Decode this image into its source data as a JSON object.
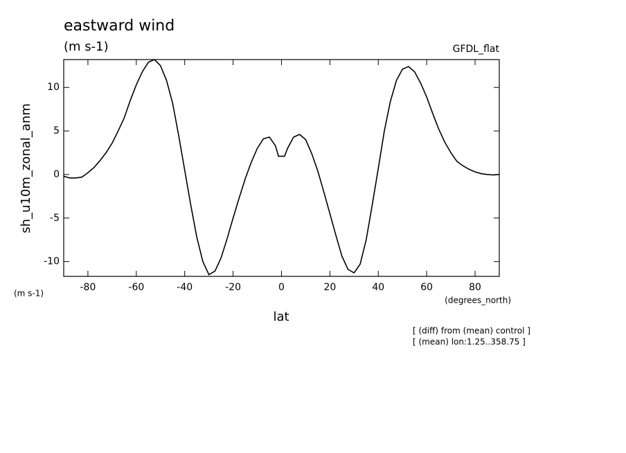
{
  "chart_data": {
    "type": "line",
    "title": "eastward wind",
    "subtitle": "(m s-1)",
    "source": "GFDL_flat",
    "y_label": "sh_u10m_zonal_anm",
    "y_units": "(m s-1)",
    "x_units": "(degrees_north)",
    "x_label": "lat",
    "notes": [
      "[ (diff) from (mean) control ]",
      "[ (mean) lon:1.25..358.75 ]"
    ],
    "xlim": [
      -90,
      90
    ],
    "ylim": [
      -11.7,
      13.2
    ],
    "xticks": [
      -80,
      -60,
      -40,
      -20,
      0,
      20,
      40,
      60,
      80
    ],
    "yticks": [
      -10,
      -5,
      0,
      5,
      10
    ],
    "x": [
      -90,
      -87.5,
      -85,
      -82.5,
      -80,
      -77.5,
      -75,
      -72.5,
      -70,
      -67.5,
      -65,
      -62.5,
      -60,
      -57.5,
      -55,
      -52.5,
      -50,
      -47.5,
      -45,
      -42.5,
      -40,
      -37.5,
      -35,
      -32.5,
      -30,
      -27.5,
      -25,
      -22.5,
      -20,
      -17.5,
      -15,
      -12.5,
      -10,
      -7.5,
      -5,
      -2.5,
      -1.25,
      1.25,
      2.5,
      5,
      7.5,
      10,
      12.5,
      15,
      17.5,
      20,
      22.5,
      25,
      27.5,
      30,
      32.5,
      35,
      37.5,
      40,
      42.5,
      45,
      47.5,
      50,
      52.5,
      55,
      57.5,
      60,
      62.5,
      65,
      67.5,
      70,
      72.5,
      75,
      77.5,
      80,
      82.5,
      85,
      87.5,
      90
    ],
    "series": [
      {
        "color": "#000000",
        "values": [
          -0.2,
          -0.4,
          -0.4,
          -0.3,
          0.2,
          0.8,
          1.6,
          2.5,
          3.6,
          5.0,
          6.5,
          8.5,
          10.3,
          11.8,
          12.9,
          13.2,
          12.5,
          10.8,
          8.2,
          4.5,
          0.5,
          -3.5,
          -7.2,
          -10.0,
          -11.5,
          -11.1,
          -9.6,
          -7.4,
          -5.0,
          -2.7,
          -0.5,
          1.4,
          3.0,
          4.1,
          4.3,
          3.3,
          2.1,
          2.1,
          3.0,
          4.3,
          4.6,
          4.0,
          2.4,
          0.4,
          -2.0,
          -4.5,
          -7.0,
          -9.4,
          -10.9,
          -11.3,
          -10.3,
          -7.5,
          -3.5,
          0.7,
          5.0,
          8.4,
          10.8,
          12.1,
          12.4,
          11.8,
          10.5,
          8.9,
          7.0,
          5.2,
          3.7,
          2.5,
          1.5,
          1.0,
          0.6,
          0.3,
          0.1,
          0.0,
          -0.05,
          0.0
        ]
      }
    ]
  }
}
